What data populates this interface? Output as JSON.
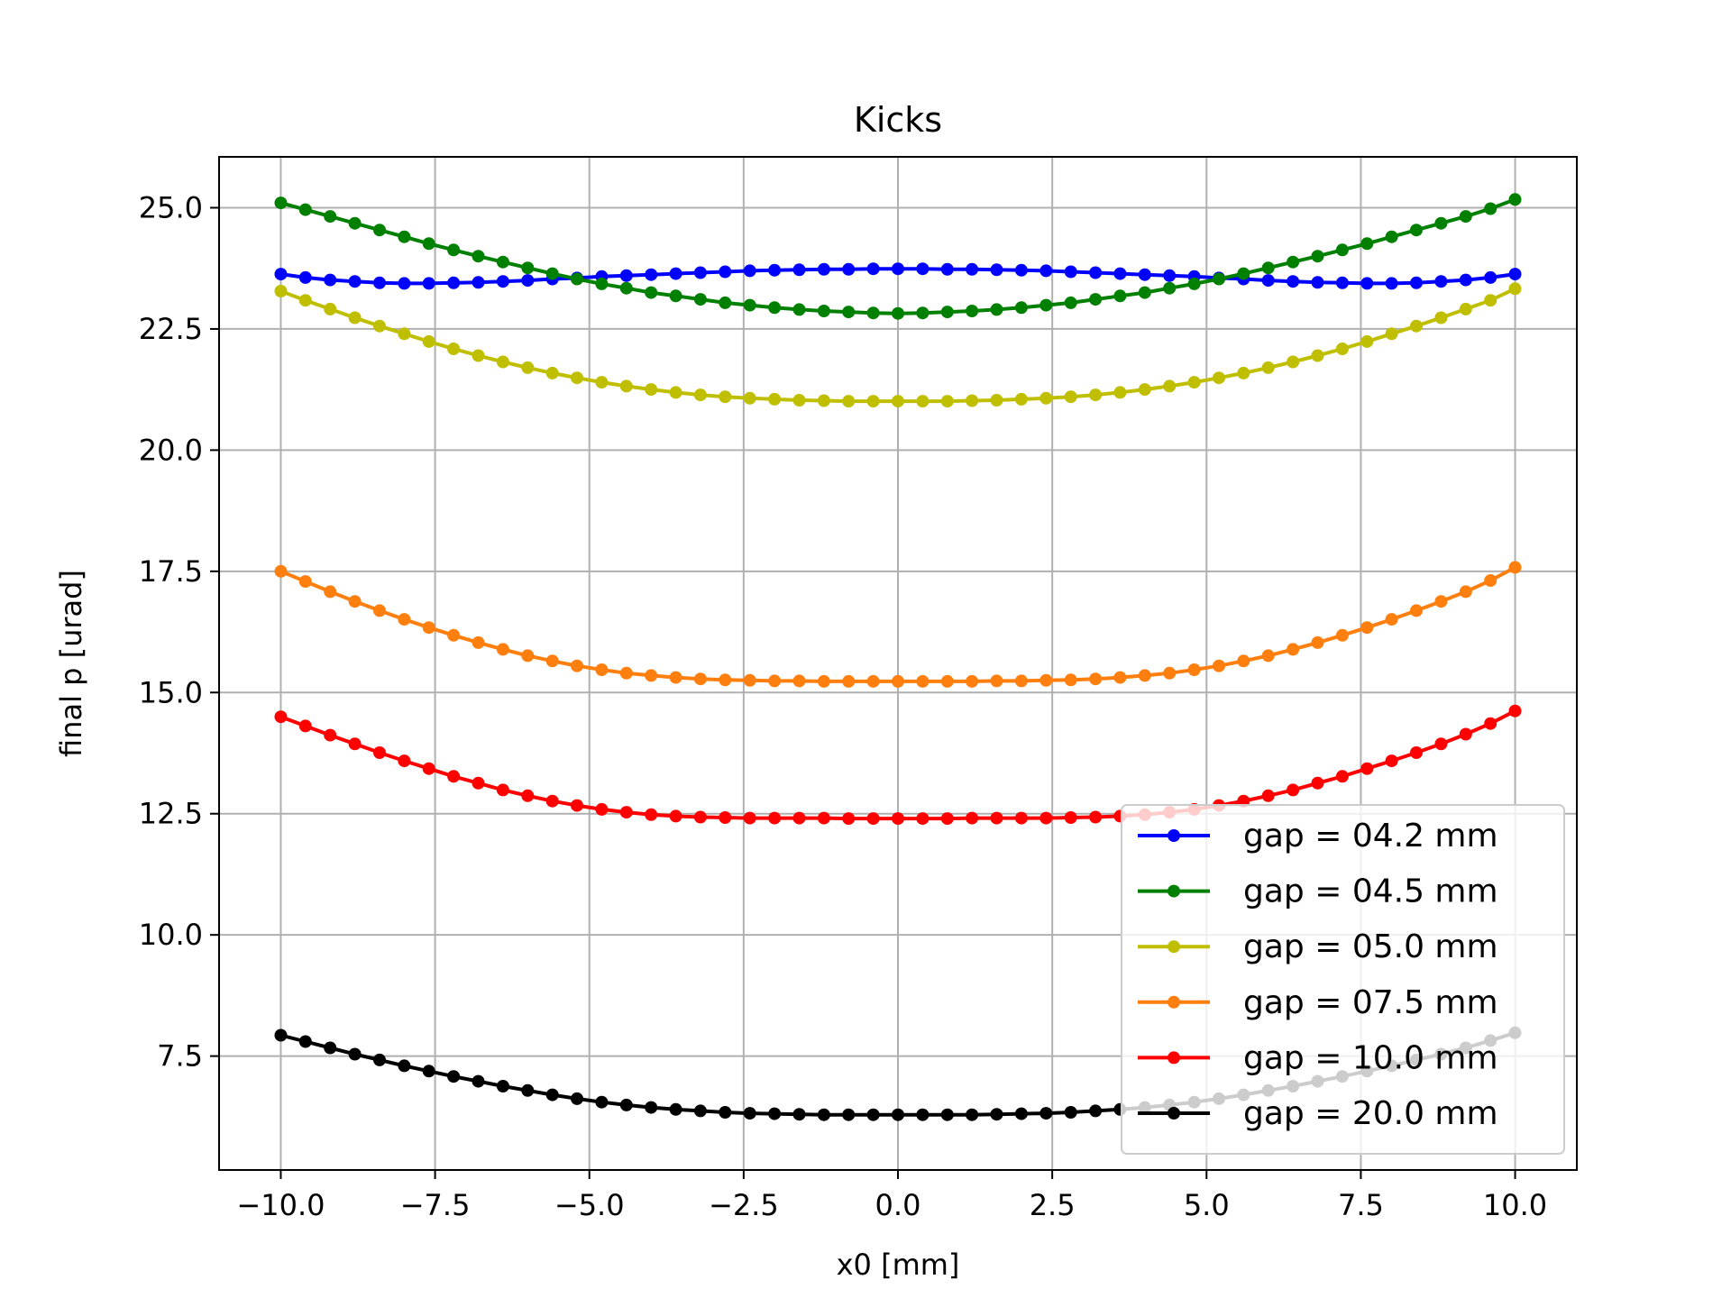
{
  "chart_data": {
    "type": "line",
    "title": "Kicks",
    "xlabel": "x0 [mm]",
    "ylabel": "final p [urad]",
    "xlim": [
      -11.0,
      11.0
    ],
    "ylim": [
      5.15,
      26.05
    ],
    "xticks": [
      -10.0,
      -7.5,
      -5.0,
      -2.5,
      0.0,
      2.5,
      5.0,
      7.5,
      10.0
    ],
    "xtick_labels": [
      "−10.0",
      "−7.5",
      "−5.0",
      "−2.5",
      "0.0",
      "2.5",
      "5.0",
      "7.5",
      "10.0"
    ],
    "yticks": [
      7.5,
      10.0,
      12.5,
      15.0,
      17.5,
      20.0,
      22.5,
      25.0
    ],
    "ytick_labels": [
      "7.5",
      "10.0",
      "12.5",
      "15.0",
      "17.5",
      "20.0",
      "22.5",
      "25.0"
    ],
    "grid": true,
    "legend_position": "lower-right",
    "marker": "circle",
    "x": [
      -10.0,
      -9.6,
      -9.2,
      -8.8,
      -8.4,
      -8.0,
      -7.6,
      -7.2,
      -6.8,
      -6.4,
      -6.0,
      -5.6,
      -5.2,
      -4.8,
      -4.4,
      -4.0,
      -3.6,
      -3.2,
      -2.8,
      -2.4,
      -2.0,
      -1.6,
      -1.2,
      -0.8,
      -0.4,
      0.0,
      0.4,
      0.8,
      1.2,
      1.6,
      2.0,
      2.4,
      2.8,
      3.2,
      3.6,
      4.0,
      4.4,
      4.8,
      5.2,
      5.6,
      6.0,
      6.4,
      6.8,
      7.2,
      7.6,
      8.0,
      8.4,
      8.8,
      9.2,
      9.6,
      10.0
    ],
    "series": [
      {
        "name": "gap = 04.2 mm",
        "color": "#0000ff",
        "values": [
          23.63,
          23.56,
          23.51,
          23.48,
          23.45,
          23.44,
          23.44,
          23.45,
          23.46,
          23.48,
          23.5,
          23.53,
          23.55,
          23.58,
          23.6,
          23.62,
          23.64,
          23.66,
          23.68,
          23.7,
          23.71,
          23.72,
          23.73,
          23.73,
          23.74,
          23.74,
          23.74,
          23.73,
          23.73,
          23.72,
          23.71,
          23.7,
          23.68,
          23.66,
          23.64,
          23.62,
          23.6,
          23.58,
          23.55,
          23.53,
          23.5,
          23.48,
          23.46,
          23.45,
          23.44,
          23.44,
          23.45,
          23.48,
          23.51,
          23.56,
          23.63
        ]
      },
      {
        "name": "gap = 04.5 mm",
        "color": "#008000",
        "values": [
          25.1,
          24.96,
          24.82,
          24.68,
          24.54,
          24.4,
          24.26,
          24.13,
          24.0,
          23.88,
          23.76,
          23.64,
          23.53,
          23.43,
          23.34,
          23.25,
          23.18,
          23.11,
          23.04,
          22.99,
          22.94,
          22.9,
          22.87,
          22.85,
          22.83,
          22.82,
          22.83,
          22.85,
          22.87,
          22.9,
          22.94,
          22.99,
          23.04,
          23.11,
          23.18,
          23.25,
          23.34,
          23.43,
          23.53,
          23.64,
          23.76,
          23.88,
          24.0,
          24.13,
          24.26,
          24.4,
          24.54,
          24.68,
          24.82,
          24.98,
          25.17
        ]
      },
      {
        "name": "gap = 05.0 mm",
        "color": "#bfbf00",
        "values": [
          23.28,
          23.09,
          22.91,
          22.73,
          22.56,
          22.4,
          22.24,
          22.09,
          21.95,
          21.82,
          21.7,
          21.59,
          21.49,
          21.4,
          21.32,
          21.25,
          21.19,
          21.14,
          21.1,
          21.07,
          21.05,
          21.03,
          21.02,
          21.01,
          21.01,
          21.01,
          21.01,
          21.01,
          21.02,
          21.03,
          21.05,
          21.07,
          21.1,
          21.14,
          21.19,
          21.25,
          21.32,
          21.4,
          21.49,
          21.59,
          21.7,
          21.82,
          21.95,
          22.09,
          22.24,
          22.4,
          22.56,
          22.73,
          22.91,
          23.09,
          23.33
        ]
      },
      {
        "name": "gap = 07.5 mm",
        "color": "#ff7f0e",
        "values": [
          17.5,
          17.29,
          17.08,
          16.88,
          16.69,
          16.51,
          16.34,
          16.18,
          16.03,
          15.89,
          15.76,
          15.65,
          15.55,
          15.47,
          15.4,
          15.35,
          15.31,
          15.28,
          15.26,
          15.25,
          15.24,
          15.24,
          15.23,
          15.23,
          15.23,
          15.23,
          15.23,
          15.23,
          15.23,
          15.24,
          15.24,
          15.25,
          15.26,
          15.28,
          15.31,
          15.35,
          15.4,
          15.47,
          15.55,
          15.65,
          15.76,
          15.89,
          16.03,
          16.18,
          16.34,
          16.51,
          16.69,
          16.88,
          17.08,
          17.31,
          17.58
        ]
      },
      {
        "name": "gap = 10.0 mm",
        "color": "#ff0000",
        "values": [
          14.5,
          14.31,
          14.12,
          13.94,
          13.76,
          13.59,
          13.43,
          13.27,
          13.13,
          12.99,
          12.87,
          12.76,
          12.67,
          12.59,
          12.53,
          12.48,
          12.45,
          12.43,
          12.42,
          12.41,
          12.41,
          12.41,
          12.41,
          12.4,
          12.4,
          12.4,
          12.4,
          12.4,
          12.41,
          12.41,
          12.41,
          12.41,
          12.42,
          12.43,
          12.45,
          12.48,
          12.53,
          12.59,
          12.67,
          12.76,
          12.87,
          12.99,
          13.13,
          13.27,
          13.43,
          13.59,
          13.76,
          13.94,
          14.14,
          14.36,
          14.62
        ]
      },
      {
        "name": "gap = 20.0 mm",
        "color": "#000000",
        "values": [
          7.93,
          7.8,
          7.67,
          7.54,
          7.42,
          7.3,
          7.19,
          7.08,
          6.98,
          6.88,
          6.79,
          6.7,
          6.62,
          6.55,
          6.49,
          6.44,
          6.4,
          6.37,
          6.34,
          6.32,
          6.31,
          6.3,
          6.29,
          6.29,
          6.29,
          6.29,
          6.29,
          6.29,
          6.29,
          6.3,
          6.31,
          6.32,
          6.34,
          6.37,
          6.4,
          6.44,
          6.49,
          6.55,
          6.62,
          6.7,
          6.79,
          6.88,
          6.98,
          7.08,
          7.19,
          7.3,
          7.42,
          7.54,
          7.67,
          7.82,
          7.98
        ]
      }
    ]
  }
}
